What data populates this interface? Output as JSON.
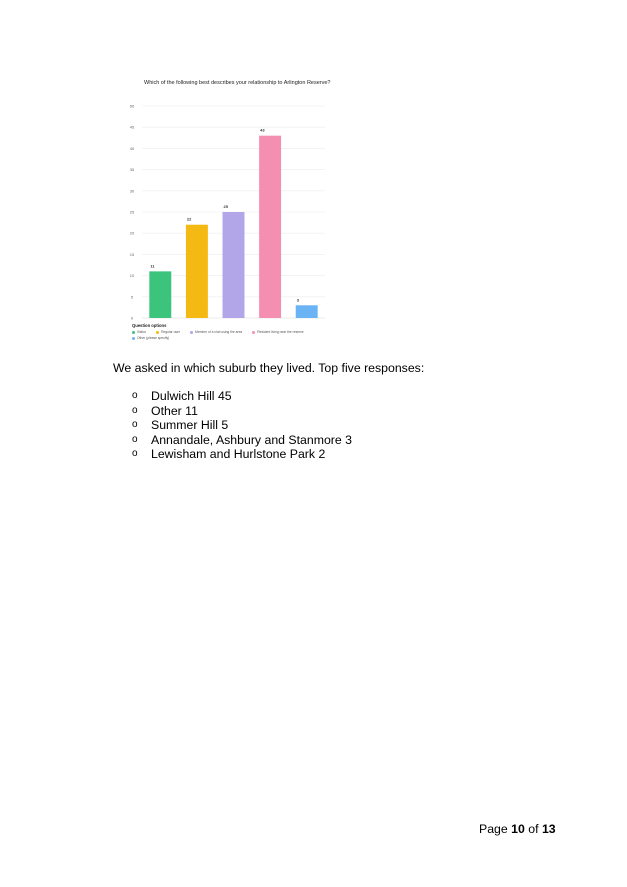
{
  "chart_data": {
    "type": "bar",
    "title": "Which of the following best describes your relationship to Arlington Reserve?",
    "categories": [
      "Visitor",
      "Regular user",
      "Member of a club using the area",
      "Resident living near the reserve",
      "Other (please specify)"
    ],
    "values": [
      11,
      22,
      25,
      43,
      3
    ],
    "colors": [
      "#3cc47c",
      "#f5b914",
      "#b3a6e8",
      "#f48fb1",
      "#6ab4f5"
    ],
    "ylim": [
      0,
      50
    ],
    "yticks": [
      0,
      5,
      10,
      15,
      20,
      25,
      30,
      35,
      40,
      45,
      50
    ],
    "grid": true,
    "legend_title": "Question options",
    "legend_placement": "bottom-left"
  },
  "body": {
    "paragraph": "We asked in which suburb they lived. Top five responses:",
    "bullet_glyph": "o",
    "bullets": [
      "Dulwich Hill 45",
      "Other 11",
      "Summer Hill 5",
      "Annandale, Ashbury and Stanmore 3",
      "Lewisham and Hurlstone Park 2"
    ]
  },
  "footer": {
    "prefix": "Page",
    "current": "10",
    "middle": "of",
    "total": "13"
  }
}
